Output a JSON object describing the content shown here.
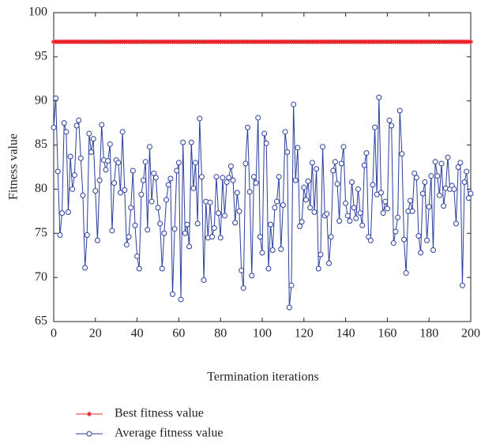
{
  "chart_data": {
    "type": "line",
    "xlabel": "Termination iterations",
    "ylabel": "Fitness value",
    "x": [
      0,
      1,
      2,
      3,
      4,
      5,
      6,
      7,
      8,
      9,
      10,
      11,
      12,
      13,
      14,
      15,
      16,
      17,
      18,
      19,
      20,
      21,
      22,
      23,
      24,
      25,
      26,
      27,
      28,
      29,
      30,
      31,
      32,
      33,
      34,
      35,
      36,
      37,
      38,
      39,
      40,
      41,
      42,
      43,
      44,
      45,
      46,
      47,
      48,
      49,
      50,
      51,
      52,
      53,
      54,
      55,
      56,
      57,
      58,
      59,
      60,
      61,
      62,
      63,
      64,
      65,
      66,
      67,
      68,
      69,
      70,
      71,
      72,
      73,
      74,
      75,
      76,
      77,
      78,
      79,
      80,
      81,
      82,
      83,
      84,
      85,
      86,
      87,
      88,
      89,
      90,
      91,
      92,
      93,
      94,
      95,
      96,
      97,
      98,
      99,
      100,
      101,
      102,
      103,
      104,
      105,
      106,
      107,
      108,
      109,
      110,
      111,
      112,
      113,
      114,
      115,
      116,
      117,
      118,
      119,
      120,
      121,
      122,
      123,
      124,
      125,
      126,
      127,
      128,
      129,
      130,
      131,
      132,
      133,
      134,
      135,
      136,
      137,
      138,
      139,
      140,
      141,
      142,
      143,
      144,
      145,
      146,
      147,
      148,
      149,
      150,
      151,
      152,
      153,
      154,
      155,
      156,
      157,
      158,
      159,
      160,
      161,
      162,
      163,
      164,
      165,
      166,
      167,
      168,
      169,
      170,
      171,
      172,
      173,
      174,
      175,
      176,
      177,
      178,
      179,
      180,
      181,
      182,
      183,
      184,
      185,
      186,
      187,
      188,
      189,
      190,
      191,
      192,
      193,
      194,
      195,
      196,
      197,
      198,
      199,
      200
    ],
    "series": [
      {
        "name": "Best fitness value",
        "color": "#e8262b",
        "marker": "star",
        "values": [
          96.7,
          96.7,
          96.7,
          96.7,
          96.7,
          96.7,
          96.7,
          96.7,
          96.7,
          96.7,
          96.7,
          96.7,
          96.7,
          96.7,
          96.7,
          96.7,
          96.7,
          96.7,
          96.7,
          96.7,
          96.7,
          96.7,
          96.7,
          96.7,
          96.7,
          96.7,
          96.7,
          96.7,
          96.7,
          96.7,
          96.7,
          96.7,
          96.7,
          96.7,
          96.7,
          96.7,
          96.7,
          96.7,
          96.7,
          96.7,
          96.7,
          96.7,
          96.7,
          96.7,
          96.7,
          96.7,
          96.7,
          96.7,
          96.7,
          96.7,
          96.7,
          96.7,
          96.7,
          96.7,
          96.7,
          96.7,
          96.7,
          96.7,
          96.7,
          96.7,
          96.7,
          96.7,
          96.7,
          96.7,
          96.7,
          96.7,
          96.7,
          96.7,
          96.7,
          96.7,
          96.7,
          96.7,
          96.7,
          96.7,
          96.7,
          96.7,
          96.7,
          96.7,
          96.7,
          96.7,
          96.7,
          96.7,
          96.7,
          96.7,
          96.7,
          96.7,
          96.7,
          96.7,
          96.7,
          96.7,
          96.7,
          96.7,
          96.7,
          96.7,
          96.7,
          96.7,
          96.7,
          96.7,
          96.7,
          96.7,
          96.7,
          96.7,
          96.7,
          96.7,
          96.7,
          96.7,
          96.7,
          96.7,
          96.7,
          96.7,
          96.7,
          96.7,
          96.7,
          96.7,
          96.7,
          96.7,
          96.7,
          96.7,
          96.7,
          96.7,
          96.7,
          96.7,
          96.7,
          96.7,
          96.7,
          96.7,
          96.7,
          96.7,
          96.7,
          96.7,
          96.7,
          96.7,
          96.7,
          96.7,
          96.7,
          96.7,
          96.7,
          96.7,
          96.7,
          96.7,
          96.7,
          96.7,
          96.7,
          96.7,
          96.7,
          96.7,
          96.7,
          96.7,
          96.7,
          96.7,
          96.7,
          96.7,
          96.7,
          96.7,
          96.7,
          96.7,
          96.7,
          96.7,
          96.7,
          96.7,
          96.7,
          96.7,
          96.7,
          96.7,
          96.7,
          96.7,
          96.7,
          96.7,
          96.7,
          96.7,
          96.7,
          96.7,
          96.7,
          96.7,
          96.7,
          96.7,
          96.7,
          96.7,
          96.7,
          96.7,
          96.7,
          96.7,
          96.7,
          96.7,
          96.7,
          96.7,
          96.7,
          96.7,
          96.7,
          96.7,
          96.7,
          96.7,
          96.7,
          96.7,
          96.7,
          96.7,
          96.7,
          96.7,
          96.7,
          96.7,
          96.7
        ]
      },
      {
        "name": "Average fitness value",
        "color": "#2b3f9e",
        "marker": "circle",
        "values": [
          87.0,
          90.3,
          82.0,
          74.8,
          77.3,
          87.5,
          86.5,
          77.4,
          83.7,
          80.0,
          81.6,
          87.2,
          87.8,
          83.5,
          79.3,
          71.1,
          74.8,
          86.3,
          84.2,
          85.7,
          79.8,
          74.2,
          81.0,
          87.3,
          83.3,
          82.2,
          83.2,
          85.1,
          75.3,
          80.7,
          83.3,
          83.0,
          79.6,
          86.5,
          79.9,
          73.7,
          74.6,
          77.9,
          82.1,
          75.9,
          72.4,
          71.0,
          79.4,
          81.0,
          83.1,
          75.4,
          84.8,
          78.6,
          81.8,
          81.3,
          77.9,
          76.1,
          71.0,
          75.0,
          78.8,
          80.5,
          81.2,
          68.1,
          75.5,
          82.1,
          83.0,
          67.5,
          85.3,
          75.0,
          76.0,
          73.5,
          85.3,
          80.1,
          83.0,
          76.1,
          88.0,
          81.4,
          69.7,
          78.6,
          74.5,
          78.5,
          74.6,
          75.6,
          81.4,
          77.3,
          74.5,
          81.3,
          77.0,
          80.8,
          81.3,
          82.6,
          81.0,
          76.2,
          79.6,
          77.5,
          70.8,
          68.8,
          82.9,
          87.0,
          79.7,
          70.2,
          81.4,
          80.7,
          88.1,
          74.6,
          72.8,
          86.3,
          85.2,
          71.0,
          76.0,
          73.1,
          77.9,
          78.6,
          81.4,
          73.2,
          78.2,
          86.5,
          84.2,
          66.6,
          69.1,
          89.6,
          81.0,
          84.7,
          75.8,
          76.3,
          80.2,
          78.8,
          80.9,
          77.9,
          83.0,
          77.4,
          82.3,
          71.0,
          72.6,
          84.8,
          77.0,
          77.2,
          71.6,
          74.6,
          82.1,
          83.1,
          80.6,
          76.4,
          82.9,
          84.8,
          78.4,
          77.0,
          76.4,
          80.8,
          77.9,
          76.7,
          80.0,
          77.3,
          75.9,
          82.7,
          84.1,
          74.6,
          74.2,
          80.5,
          87.0,
          79.4,
          90.4,
          79.6,
          77.3,
          78.6,
          77.8,
          87.8,
          87.2,
          73.9,
          75.2,
          76.8,
          88.9,
          84.0,
          74.3,
          70.5,
          77.5,
          78.7,
          77.5,
          81.8,
          81.3,
          74.7,
          72.8,
          79.5,
          80.8,
          74.2,
          78.0,
          81.5,
          73.1,
          83.1,
          81.5,
          79.3,
          82.9,
          78.1,
          80.1,
          83.6,
          80.0,
          80.4,
          80.0,
          76.1,
          82.5,
          83.0,
          69.1,
          80.8,
          82.0,
          79.0,
          79.5
        ]
      }
    ],
    "xlim": [
      0,
      200
    ],
    "xticks": [
      0,
      20,
      40,
      60,
      80,
      100,
      120,
      140,
      160,
      180,
      200
    ],
    "ylim": [
      65,
      100
    ],
    "yticks": [
      65,
      70,
      75,
      80,
      85,
      90,
      95,
      100
    ]
  }
}
